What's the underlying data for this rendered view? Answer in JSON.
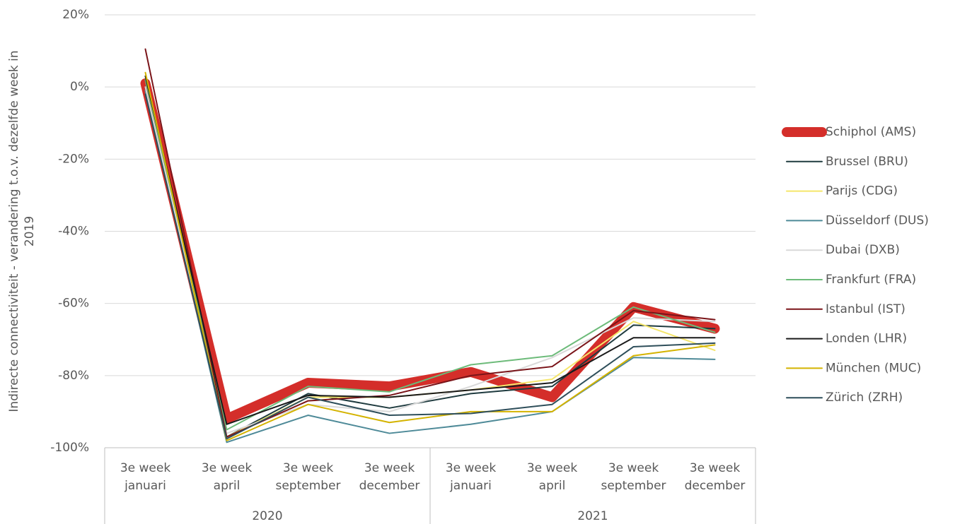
{
  "chart_data": {
    "type": "line",
    "y_axis_label": [
      "Indirecte connectiviteit - verandering t.o.v. dezelfde week in",
      "2019"
    ],
    "categories": [
      [
        "3e week",
        "januari"
      ],
      [
        "3e week",
        "april"
      ],
      [
        "3e week",
        "september"
      ],
      [
        "3e week",
        "december"
      ],
      [
        "3e week",
        "januari"
      ],
      [
        "3e week",
        "april"
      ],
      [
        "3e week",
        "september"
      ],
      [
        "3e week",
        "december"
      ]
    ],
    "groups": [
      "2020",
      "2021"
    ],
    "ylim": [
      -100,
      20
    ],
    "yticks": [
      {
        "value": -100,
        "label": "-100%"
      },
      {
        "value": -80,
        "label": "-80%"
      },
      {
        "value": -60,
        "label": "-60%"
      },
      {
        "value": -40,
        "label": "-40%"
      },
      {
        "value": -20,
        "label": "-20%"
      },
      {
        "value": 0,
        "label": "0%"
      },
      {
        "value": 20,
        "label": "20%"
      }
    ],
    "grid": true,
    "legend": "right",
    "series": [
      {
        "name": "Schiphol (AMS)",
        "color": "#d42e2a",
        "width": 14,
        "values": [
          1,
          -92,
          -82,
          -83,
          -79,
          -86,
          -61,
          -67
        ]
      },
      {
        "name": "Brussel (BRU)",
        "color": "#1f3b3f",
        "width": 2,
        "values": [
          0,
          -97,
          -85,
          -89,
          -85,
          -83,
          -66,
          -67
        ]
      },
      {
        "name": "Parijs (CDG)",
        "color": "#f5e66b",
        "width": 2,
        "values": [
          3,
          -97,
          -86,
          -86,
          -84,
          -81,
          -65,
          -73
        ]
      },
      {
        "name": "Düsseldorf (DUS)",
        "color": "#4e8a98",
        "width": 2,
        "values": [
          -1,
          -98.5,
          -91,
          -96,
          -93.5,
          -90,
          -75,
          -75.5
        ]
      },
      {
        "name": "Dubai (DXB)",
        "color": "#d9d9d9",
        "width": 2,
        "values": [
          0,
          -96,
          -88,
          -90,
          -83,
          -75,
          -64,
          -65
        ]
      },
      {
        "name": "Frankfurt (FRA)",
        "color": "#6dbb7a",
        "width": 2,
        "values": [
          2,
          -95,
          -83,
          -84.5,
          -77,
          -74.5,
          -61,
          -68
        ]
      },
      {
        "name": "Istanbul (IST)",
        "color": "#7a1419",
        "width": 2,
        "values": [
          10.5,
          -97,
          -87,
          -85.5,
          -80,
          -77.5,
          -62,
          -64.5
        ]
      },
      {
        "name": "Londen (LHR)",
        "color": "#1a1a1a",
        "width": 2,
        "values": [
          3,
          -93.5,
          -85.5,
          -86,
          -84,
          -82,
          -69.5,
          -69.5
        ]
      },
      {
        "name": "München (MUC)",
        "color": "#d4b300",
        "width": 2,
        "values": [
          4,
          -98,
          -88,
          -93,
          -90,
          -90,
          -74.5,
          -71.5
        ]
      },
      {
        "name": "Zürich (ZRH)",
        "color": "#2e4e5a",
        "width": 2,
        "values": [
          -2,
          -97.5,
          -86,
          -91,
          -90.5,
          -88,
          -72,
          -71
        ]
      }
    ]
  }
}
